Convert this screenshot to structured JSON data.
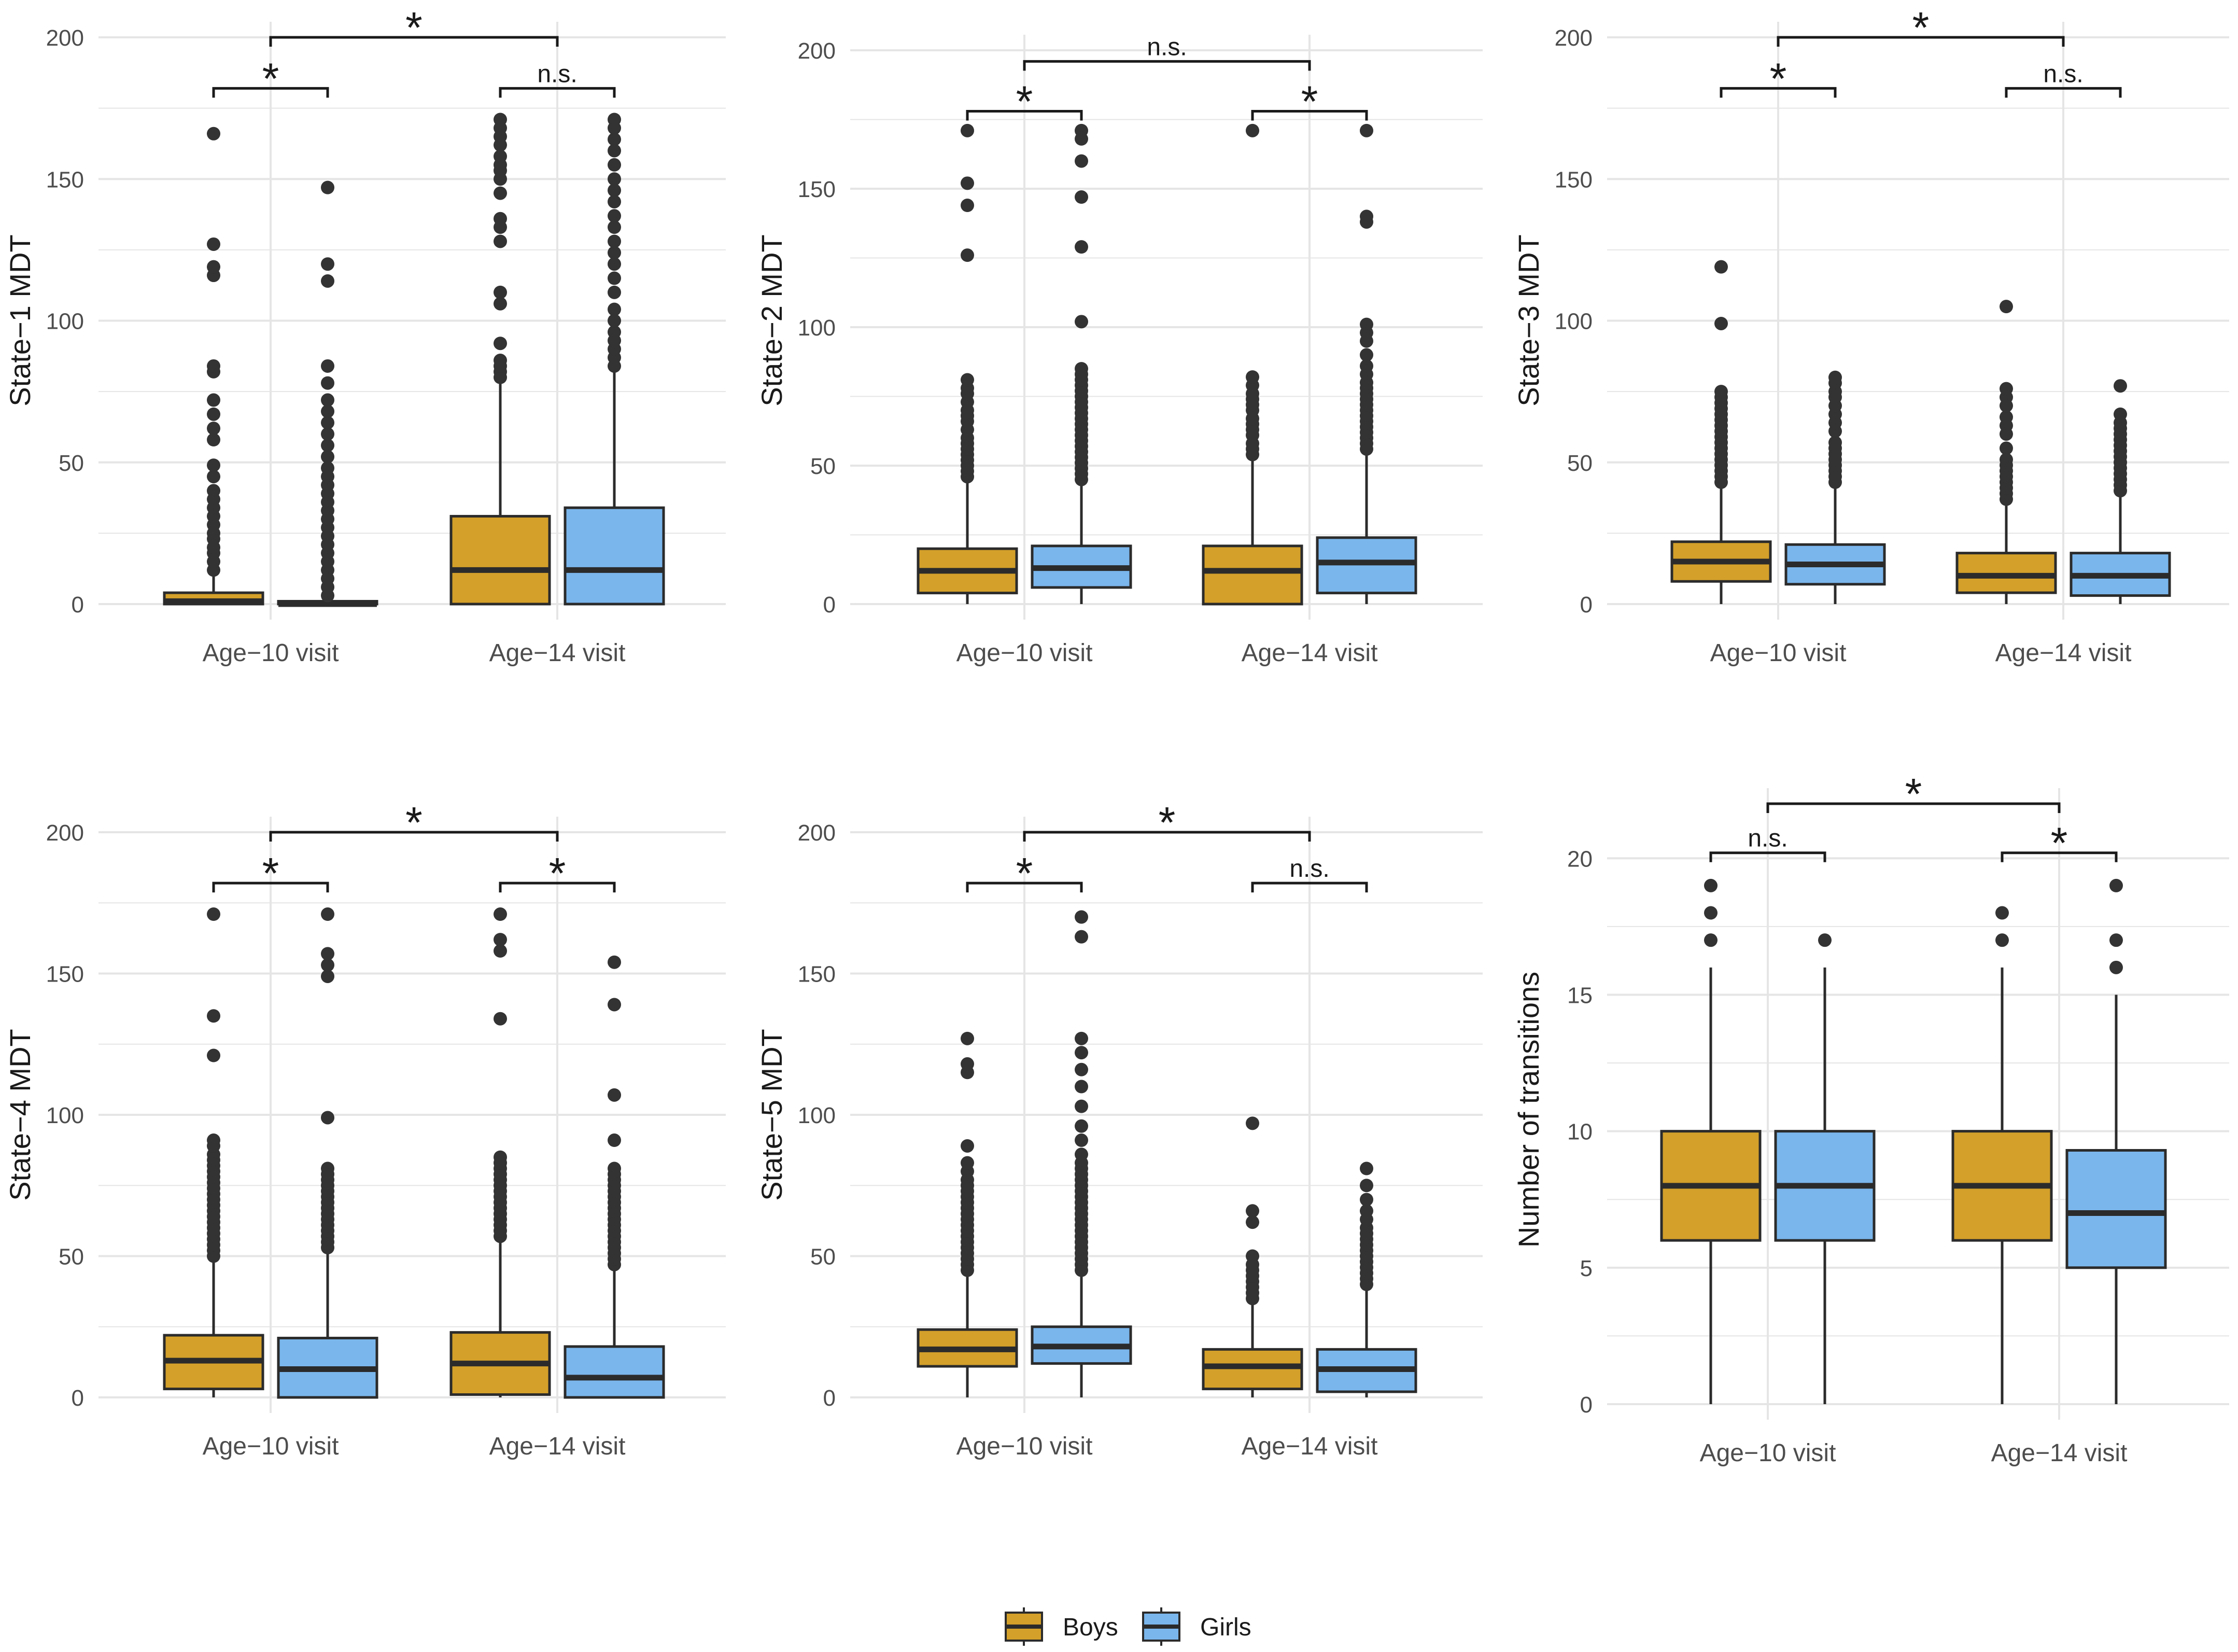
{
  "colors": {
    "boys": "#D4A02A",
    "girls": "#7AB6EC",
    "outline": "#2b2b2b",
    "grid": "#e5e5e5"
  },
  "legend": {
    "items": [
      {
        "label": "Boys",
        "color": "#D4A02A"
      },
      {
        "label": "Girls",
        "color": "#7AB6EC"
      }
    ]
  },
  "chart_data": [
    {
      "type": "boxplot",
      "ylabel": "State−1 MDT",
      "ylim": [
        0,
        200
      ],
      "yticks": [
        0,
        50,
        100,
        150,
        200
      ],
      "categories": [
        "Age−10 visit",
        "Age−14 visit"
      ],
      "series": [
        {
          "name": "Boys",
          "boxes": [
            {
              "q1": 0,
              "median": 1,
              "q3": 4,
              "lower": 0,
              "upper": 10,
              "outliers": [
                12,
                15,
                18,
                20,
                23,
                25,
                28,
                31,
                34,
                37,
                40,
                45,
                49,
                58,
                62,
                67,
                72,
                82,
                84,
                116,
                119,
                127,
                166
              ]
            },
            {
              "q1": 0,
              "median": 12,
              "q3": 31,
              "lower": 0,
              "upper": 78,
              "outliers": [
                80,
                82,
                84,
                86,
                92,
                106,
                110,
                128,
                133,
                136,
                145,
                150,
                153,
                155,
                158,
                162,
                165,
                168,
                171
              ]
            }
          ]
        },
        {
          "name": "Girls",
          "boxes": [
            {
              "q1": 0,
              "median": 0,
              "q3": 1,
              "lower": 0,
              "upper": 1,
              "outliers": [
                3,
                6,
                9,
                12,
                15,
                18,
                21,
                24,
                27,
                30,
                33,
                36,
                39,
                42,
                45,
                48,
                52,
                56,
                60,
                64,
                68,
                72,
                78,
                84,
                114,
                120,
                147
              ]
            },
            {
              "q1": 0,
              "median": 12,
              "q3": 34,
              "lower": 0,
              "upper": 83,
              "outliers": [
                84,
                87,
                90,
                93,
                96,
                100,
                104,
                110,
                115,
                120,
                124,
                128,
                133,
                137,
                142,
                146,
                150,
                155,
                160,
                164,
                168,
                171
              ]
            }
          ]
        }
      ],
      "significance": [
        {
          "label": "*",
          "type": "star",
          "between": "Age−10 visit Boys vs Girls",
          "level": 182
        },
        {
          "label": "n.s.",
          "type": "text",
          "between": "Age−14 visit Boys vs Girls",
          "level": 182
        },
        {
          "label": "*",
          "type": "star",
          "between": "Age−10 visit vs Age−14 visit",
          "level": 200
        }
      ]
    },
    {
      "type": "boxplot",
      "ylabel": "State−2 MDT",
      "ylim": [
        0,
        200
      ],
      "yticks": [
        0,
        50,
        100,
        150,
        200
      ],
      "categories": [
        "Age−10 visit",
        "Age−14 visit"
      ],
      "series": [
        {
          "name": "Boys",
          "boxes": [
            {
              "q1": 4,
              "median": 12,
              "q3": 20,
              "lower": 0,
              "upper": 44,
              "outliers": [
                46,
                48,
                50,
                52,
                54,
                56,
                58,
                60,
                63,
                66,
                68,
                70,
                73,
                76,
                78,
                81,
                126,
                144,
                152,
                171
              ]
            },
            {
              "q1": 0,
              "median": 12,
              "q3": 21,
              "lower": 0,
              "upper": 52,
              "outliers": [
                54,
                56,
                58,
                61,
                63,
                65,
                67,
                70,
                72,
                74,
                76,
                79,
                82,
                171
              ]
            }
          ]
        },
        {
          "name": "Girls",
          "boxes": [
            {
              "q1": 6,
              "median": 13,
              "q3": 21,
              "lower": 0,
              "upper": 43,
              "outliers": [
                45,
                47,
                49,
                51,
                53,
                55,
                57,
                59,
                61,
                63,
                65,
                67,
                69,
                71,
                73,
                75,
                77,
                79,
                81,
                83,
                85,
                102,
                129,
                147,
                160,
                168,
                171
              ]
            },
            {
              "q1": 4,
              "median": 15,
              "q3": 24,
              "lower": 0,
              "upper": 54,
              "outliers": [
                56,
                58,
                60,
                62,
                64,
                66,
                68,
                70,
                72,
                74,
                76,
                78,
                80,
                83,
                86,
                90,
                95,
                98,
                101,
                138,
                140,
                171
              ]
            }
          ]
        }
      ],
      "significance": [
        {
          "label": "*",
          "type": "star",
          "between": "Age−10 visit Boys vs Girls",
          "level": 178
        },
        {
          "label": "*",
          "type": "star",
          "between": "Age−14 visit Boys vs Girls",
          "level": 178
        },
        {
          "label": "n.s.",
          "type": "text",
          "between": "Age−10 visit vs Age−14 visit",
          "level": 196
        }
      ]
    },
    {
      "type": "boxplot",
      "ylabel": "State−3 MDT",
      "ylim": [
        0,
        200
      ],
      "yticks": [
        0,
        50,
        100,
        150,
        200
      ],
      "categories": [
        "Age−10 visit",
        "Age−14 visit"
      ],
      "series": [
        {
          "name": "Boys",
          "boxes": [
            {
              "q1": 8,
              "median": 15,
              "q3": 22,
              "lower": 0,
              "upper": 41,
              "outliers": [
                43,
                45,
                47,
                49,
                51,
                53,
                55,
                57,
                59,
                61,
                63,
                65,
                67,
                69,
                71,
                73,
                75,
                99,
                119
              ]
            },
            {
              "q1": 4,
              "median": 10,
              "q3": 18,
              "lower": 0,
              "upper": 35,
              "outliers": [
                37,
                39,
                41,
                43,
                45,
                47,
                49,
                51,
                55,
                60,
                63,
                66,
                70,
                73,
                76,
                105
              ]
            }
          ]
        },
        {
          "name": "Girls",
          "boxes": [
            {
              "q1": 7,
              "median": 14,
              "q3": 21,
              "lower": 0,
              "upper": 41,
              "outliers": [
                43,
                45,
                47,
                49,
                51,
                53,
                55,
                57,
                61,
                64,
                67,
                70,
                73,
                75,
                78,
                80
              ]
            },
            {
              "q1": 3,
              "median": 10,
              "q3": 18,
              "lower": 0,
              "upper": 38,
              "outliers": [
                40,
                42,
                44,
                46,
                48,
                50,
                52,
                54,
                56,
                58,
                60,
                62,
                64,
                67,
                77
              ]
            }
          ]
        }
      ],
      "significance": [
        {
          "label": "*",
          "type": "star",
          "between": "Age−10 visit Boys vs Girls",
          "level": 182
        },
        {
          "label": "n.s.",
          "type": "text",
          "between": "Age−14 visit Boys vs Girls",
          "level": 182
        },
        {
          "label": "*",
          "type": "star",
          "between": "Age−10 visit vs Age−14 visit",
          "level": 200
        }
      ]
    },
    {
      "type": "boxplot",
      "ylabel": "State−4 MDT",
      "ylim": [
        0,
        200
      ],
      "yticks": [
        0,
        50,
        100,
        150,
        200
      ],
      "categories": [
        "Age−10 visit",
        "Age−14 visit"
      ],
      "series": [
        {
          "name": "Boys",
          "boxes": [
            {
              "q1": 3,
              "median": 13,
              "q3": 22,
              "lower": 0,
              "upper": 48,
              "outliers": [
                50,
                52,
                54,
                56,
                58,
                60,
                62,
                64,
                66,
                68,
                70,
                72,
                74,
                76,
                78,
                80,
                82,
                84,
                86,
                89,
                91,
                121,
                135,
                171
              ]
            },
            {
              "q1": 1,
              "median": 12,
              "q3": 23,
              "lower": 0,
              "upper": 55,
              "outliers": [
                57,
                59,
                61,
                63,
                65,
                67,
                69,
                71,
                73,
                75,
                77,
                79,
                81,
                83,
                85,
                134,
                158,
                162,
                171
              ]
            }
          ]
        },
        {
          "name": "Girls",
          "boxes": [
            {
              "q1": 0,
              "median": 10,
              "q3": 21,
              "lower": 0,
              "upper": 51,
              "outliers": [
                53,
                55,
                57,
                59,
                61,
                63,
                65,
                67,
                69,
                71,
                73,
                75,
                77,
                79,
                81,
                99,
                149,
                153,
                157,
                171
              ]
            },
            {
              "q1": 0,
              "median": 7,
              "q3": 18,
              "lower": 0,
              "upper": 45,
              "outliers": [
                47,
                49,
                51,
                53,
                55,
                57,
                59,
                61,
                63,
                65,
                67,
                69,
                71,
                73,
                75,
                77,
                79,
                81,
                91,
                107,
                139,
                154
              ]
            }
          ]
        }
      ],
      "significance": [
        {
          "label": "*",
          "type": "star",
          "between": "Age−10 visit Boys vs Girls",
          "level": 182
        },
        {
          "label": "*",
          "type": "star",
          "between": "Age−14 visit Boys vs Girls",
          "level": 182
        },
        {
          "label": "*",
          "type": "star",
          "between": "Age−10 visit vs Age−14 visit",
          "level": 200
        }
      ]
    },
    {
      "type": "boxplot",
      "ylabel": "State−5 MDT",
      "ylim": [
        0,
        200
      ],
      "yticks": [
        0,
        50,
        100,
        150,
        200
      ],
      "categories": [
        "Age−10 visit",
        "Age−14 visit"
      ],
      "series": [
        {
          "name": "Boys",
          "boxes": [
            {
              "q1": 11,
              "median": 17,
              "q3": 24,
              "lower": 0,
              "upper": 43,
              "outliers": [
                45,
                47,
                49,
                51,
                53,
                55,
                57,
                59,
                61,
                63,
                65,
                67,
                69,
                71,
                73,
                75,
                77,
                80,
                83,
                89,
                115,
                118,
                127
              ]
            },
            {
              "q1": 3,
              "median": 11,
              "q3": 17,
              "lower": 0,
              "upper": 33,
              "outliers": [
                35,
                37,
                39,
                41,
                43,
                45,
                47,
                50,
                62,
                66,
                97
              ]
            }
          ]
        },
        {
          "name": "Girls",
          "boxes": [
            {
              "q1": 12,
              "median": 18,
              "q3": 25,
              "lower": 0,
              "upper": 43,
              "outliers": [
                45,
                47,
                49,
                51,
                53,
                55,
                57,
                59,
                61,
                63,
                65,
                67,
                69,
                71,
                73,
                75,
                77,
                79,
                81,
                83,
                86,
                91,
                96,
                103,
                110,
                116,
                122,
                127,
                163,
                170
              ]
            },
            {
              "q1": 2,
              "median": 10,
              "q3": 17,
              "lower": 0,
              "upper": 38,
              "outliers": [
                40,
                42,
                44,
                46,
                48,
                50,
                52,
                54,
                56,
                58,
                60,
                63,
                66,
                70,
                75,
                81
              ]
            }
          ]
        }
      ],
      "significance": [
        {
          "label": "*",
          "type": "star",
          "between": "Age−10 visit Boys vs Girls",
          "level": 182
        },
        {
          "label": "n.s.",
          "type": "text",
          "between": "Age−14 visit Boys vs Girls",
          "level": 182
        },
        {
          "label": "*",
          "type": "star",
          "between": "Age−10 visit vs Age−14 visit",
          "level": 200
        }
      ]
    },
    {
      "type": "boxplot",
      "ylabel": "Number of transitions",
      "ylim": [
        0,
        22
      ],
      "yticks": [
        0,
        5,
        10,
        15,
        20
      ],
      "categories": [
        "Age−10 visit",
        "Age−14 visit"
      ],
      "series": [
        {
          "name": "Boys",
          "boxes": [
            {
              "q1": 6,
              "median": 8,
              "q3": 10,
              "lower": 0,
              "upper": 16,
              "outliers": [
                17,
                18,
                19
              ]
            },
            {
              "q1": 6,
              "median": 8,
              "q3": 10,
              "lower": 0,
              "upper": 16,
              "outliers": [
                17,
                18
              ]
            }
          ]
        },
        {
          "name": "Girls",
          "boxes": [
            {
              "q1": 6,
              "median": 8,
              "q3": 10,
              "lower": 0,
              "upper": 16,
              "outliers": [
                17
              ]
            },
            {
              "q1": 5,
              "median": 7,
              "q3": 9.3,
              "lower": 0,
              "upper": 15,
              "outliers": [
                16,
                17,
                19
              ]
            }
          ]
        }
      ],
      "significance": [
        {
          "label": "n.s.",
          "type": "text",
          "between": "Age−10 visit Boys vs Girls",
          "level": 20.2
        },
        {
          "label": "*",
          "type": "star",
          "between": "Age−14 visit Boys vs Girls",
          "level": 20.2
        },
        {
          "label": "*",
          "type": "star",
          "between": "Age−10 visit vs Age−14 visit",
          "level": 22
        }
      ]
    }
  ]
}
